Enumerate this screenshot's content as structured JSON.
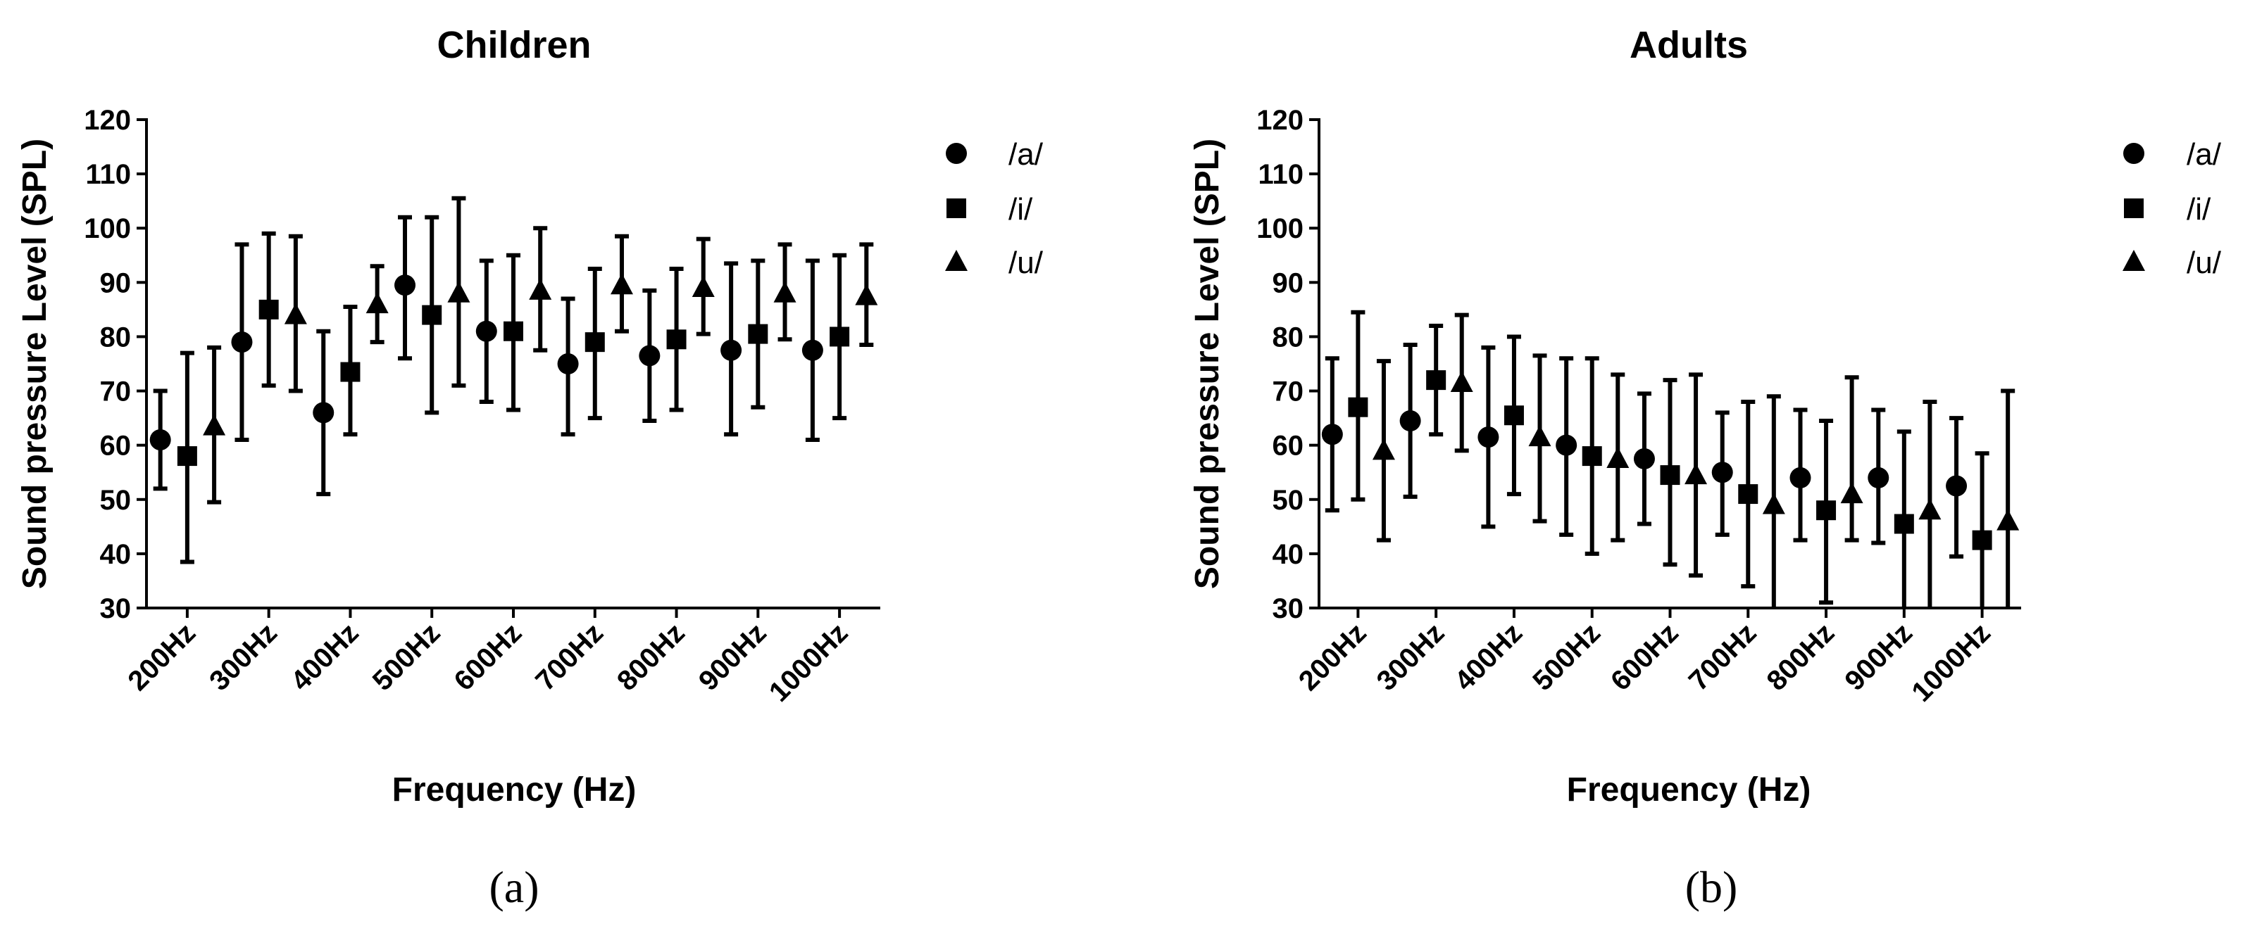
{
  "chart_data": [
    {
      "type": "scatter",
      "panel_label": "(a)",
      "title": "Children",
      "xlabel": "Frequency (Hz)",
      "ylabel": "Sound pressure Level (SPL)",
      "ylim": [
        30,
        120
      ],
      "yticks": [
        "30",
        "40",
        "50",
        "60",
        "70",
        "80",
        "90",
        "100",
        "110",
        "120"
      ],
      "categories": [
        "200Hz",
        "300Hz",
        "400Hz",
        "500Hz",
        "600Hz",
        "700Hz",
        "800Hz",
        "900Hz",
        "1000Hz"
      ],
      "legend_position": "right",
      "series": [
        {
          "name": "/a/",
          "marker": "circle",
          "values": [
            61,
            79,
            66,
            89.5,
            81,
            75,
            76.5,
            77.5,
            77.5
          ],
          "low": [
            52,
            61,
            51,
            76,
            68,
            62,
            64.5,
            62,
            61
          ],
          "high": [
            70,
            97,
            81,
            102,
            94,
            87,
            88.5,
            93.5,
            94
          ]
        },
        {
          "name": "/i/",
          "marker": "square",
          "values": [
            58,
            85,
            73.5,
            84,
            81,
            79,
            79.5,
            80.5,
            80
          ],
          "low": [
            38.5,
            71,
            62,
            66,
            66.5,
            65,
            66.5,
            67,
            65
          ],
          "high": [
            77,
            99,
            85.5,
            102,
            95,
            92.5,
            92.5,
            94,
            95
          ]
        },
        {
          "name": "/u/",
          "marker": "triangle",
          "values": [
            63.5,
            84,
            86,
            88,
            88.5,
            89.5,
            89,
            88,
            87.5
          ],
          "low": [
            49.5,
            70,
            79,
            71,
            77.5,
            81,
            80.5,
            79.5,
            78.5
          ],
          "high": [
            78,
            98.5,
            93,
            105.5,
            100,
            98.5,
            98,
            97,
            97
          ]
        }
      ]
    },
    {
      "type": "scatter",
      "panel_label": "(b)",
      "title": "Adults",
      "xlabel": "Frequency (Hz)",
      "ylabel": "Sound pressure Level (SPL)",
      "ylim": [
        30,
        120
      ],
      "yticks": [
        "30",
        "40",
        "50",
        "60",
        "70",
        "80",
        "90",
        "100",
        "110",
        "120"
      ],
      "categories": [
        "200Hz",
        "300Hz",
        "400Hz",
        "500Hz",
        "600Hz",
        "700Hz",
        "800Hz",
        "900Hz",
        "1000Hz"
      ],
      "legend_position": "right",
      "series": [
        {
          "name": "/a/",
          "marker": "circle",
          "values": [
            62,
            64.5,
            61.5,
            60,
            57.5,
            55,
            54,
            54,
            52.5
          ],
          "low": [
            48,
            50.5,
            45,
            43.5,
            45.5,
            43.5,
            42.5,
            42,
            39.5
          ],
          "high": [
            76,
            78.5,
            78,
            76,
            69.5,
            66,
            66.5,
            66.5,
            65
          ]
        },
        {
          "name": "/i/",
          "marker": "square",
          "values": [
            67,
            72,
            65.5,
            58,
            54.5,
            51,
            48,
            45.5,
            42.5
          ],
          "low": [
            50,
            62,
            51,
            40,
            38,
            34,
            31,
            30,
            30
          ],
          "high": [
            84.5,
            82,
            80,
            76,
            72,
            68,
            64.5,
            62.5,
            58.5
          ]
        },
        {
          "name": "/u/",
          "marker": "triangle",
          "values": [
            59,
            71.5,
            61.5,
            57.5,
            54.5,
            49,
            51,
            48,
            46
          ],
          "low": [
            42.5,
            59,
            46,
            42.5,
            36,
            30,
            42.5,
            30,
            30
          ],
          "high": [
            75.5,
            84,
            76.5,
            73,
            73,
            69,
            72.5,
            68,
            70
          ]
        }
      ]
    }
  ]
}
